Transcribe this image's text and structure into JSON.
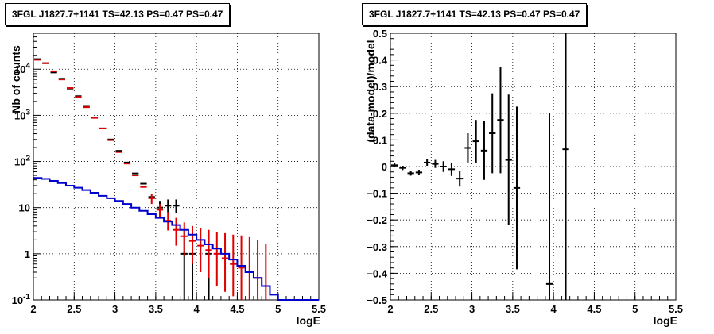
{
  "chart_data": [
    {
      "type": "line",
      "title": "3FGL J1827.7+1141 TS=42.13 PS=0.47 PS=0.47",
      "xlabel": "logE",
      "ylabel": "Nb of counts",
      "xlim": [
        2,
        5.5
      ],
      "ylim": [
        0.1,
        60000
      ],
      "yscale": "log",
      "grid": true,
      "xticks": [
        "2",
        "2.5",
        "3",
        "3.5",
        "4",
        "4.5",
        "5",
        "5.5"
      ],
      "yticks": [
        {
          "v": 0.1,
          "label": "10",
          "sup": "-1"
        },
        {
          "v": 1,
          "label": "1",
          "sup": ""
        },
        {
          "v": 10,
          "label": "10",
          "sup": ""
        },
        {
          "v": 100,
          "label": "10",
          "sup": "2"
        },
        {
          "v": 1000,
          "label": "10",
          "sup": "3"
        },
        {
          "v": 10000,
          "label": "10",
          "sup": "4"
        }
      ],
      "bin_edges": [
        2.0,
        2.1,
        2.2,
        2.3,
        2.4,
        2.5,
        2.6,
        2.7,
        2.8,
        2.9,
        3.0,
        3.1,
        3.2,
        3.3,
        3.4,
        3.5,
        3.6,
        3.7,
        3.8,
        3.9,
        4.0,
        4.1,
        4.2,
        4.3,
        4.4,
        4.5,
        4.6,
        4.7,
        4.8,
        4.9,
        5.0,
        5.1,
        5.2,
        5.3,
        5.4,
        5.5
      ],
      "series": [
        {
          "style": "data-points",
          "color": "#000000",
          "points": [
            {
              "x": 2.05,
              "y": 16500
            },
            {
              "x": 2.15,
              "y": 13500
            },
            {
              "x": 2.25,
              "y": 8500
            },
            {
              "x": 2.35,
              "y": 6200
            },
            {
              "x": 2.45,
              "y": 3800
            },
            {
              "x": 2.55,
              "y": 2600
            },
            {
              "x": 2.65,
              "y": 1600
            },
            {
              "x": 2.75,
              "y": 900
            },
            {
              "x": 2.85,
              "y": 520
            },
            {
              "x": 2.95,
              "y": 300
            },
            {
              "x": 3.05,
              "y": 170
            },
            {
              "x": 3.15,
              "y": 95
            },
            {
              "x": 3.25,
              "y": 55
            },
            {
              "x": 3.35,
              "y": 33
            },
            {
              "x": 3.45,
              "y": 17
            },
            {
              "x": 3.55,
              "y": 10,
              "lo": 7,
              "hi": 14
            },
            {
              "x": 3.65,
              "y": 11,
              "lo": 7.5,
              "hi": 15
            },
            {
              "x": 3.75,
              "y": 11,
              "lo": 7.5,
              "hi": 15
            },
            {
              "x": 3.85,
              "y": 1,
              "lo": 0.1,
              "hi": 3.2
            },
            {
              "x": 3.95,
              "y": 1,
              "lo": 0.1,
              "hi": 3.2
            },
            {
              "x": 4.15,
              "y": 1,
              "lo": 0.1,
              "hi": 3.2
            }
          ]
        },
        {
          "style": "model-points",
          "color": "#e00000",
          "points": [
            {
              "x": 2.05,
              "y": 16000
            },
            {
              "x": 2.15,
              "y": 13500
            },
            {
              "x": 2.25,
              "y": 9000
            },
            {
              "x": 2.35,
              "y": 6000
            },
            {
              "x": 2.45,
              "y": 3900
            },
            {
              "x": 2.55,
              "y": 2500
            },
            {
              "x": 2.65,
              "y": 1500
            },
            {
              "x": 2.75,
              "y": 880
            },
            {
              "x": 2.85,
              "y": 520
            },
            {
              "x": 2.95,
              "y": 290
            },
            {
              "x": 3.05,
              "y": 160
            },
            {
              "x": 3.15,
              "y": 90
            },
            {
              "x": 3.25,
              "y": 50
            },
            {
              "x": 3.35,
              "y": 28
            },
            {
              "x": 3.45,
              "y": 16,
              "lo": 12,
              "hi": 20
            },
            {
              "x": 3.55,
              "y": 9,
              "lo": 6,
              "hi": 12
            },
            {
              "x": 3.65,
              "y": 5.2,
              "lo": 3.2,
              "hi": 8
            },
            {
              "x": 3.75,
              "y": 3.3,
              "lo": 1.5,
              "hi": 6
            },
            {
              "x": 3.85,
              "y": 2.4,
              "lo": 0.9,
              "hi": 4.8
            },
            {
              "x": 3.95,
              "y": 1.9,
              "lo": 0.6,
              "hi": 4
            },
            {
              "x": 4.05,
              "y": 1.5,
              "lo": 0.4,
              "hi": 3.6
            },
            {
              "x": 4.15,
              "y": 1.2,
              "lo": 0.3,
              "hi": 3.3
            },
            {
              "x": 4.25,
              "y": 1.0,
              "lo": 0.2,
              "hi": 3.0
            },
            {
              "x": 4.35,
              "y": 0.8,
              "lo": 0.15,
              "hi": 2.8
            },
            {
              "x": 4.45,
              "y": 0.6,
              "lo": 0.12,
              "hi": 2.6
            },
            {
              "x": 4.55,
              "y": 0.5,
              "lo": 0.1,
              "hi": 2.5
            },
            {
              "x": 4.65,
              "y": 0.4,
              "lo": 0.1,
              "hi": 2.3
            },
            {
              "x": 4.75,
              "y": 0.3,
              "lo": 0.1,
              "hi": 2.0
            },
            {
              "x": 4.85,
              "y": 0.2,
              "lo": 0.1,
              "hi": 1.6
            }
          ]
        },
        {
          "style": "step",
          "color": "#0000cc",
          "values": [
            44,
            42,
            38,
            34,
            30,
            27,
            24,
            21,
            18,
            16,
            14,
            12,
            10,
            8.5,
            7.2,
            6.0,
            5.0,
            4.2,
            3.3,
            2.6,
            2.0,
            1.6,
            1.3,
            1.0,
            0.75,
            0.55,
            0.4,
            0.3,
            0.2,
            0.13,
            0.1,
            0.1,
            0.1,
            0.1,
            0.1
          ]
        }
      ]
    },
    {
      "type": "scatter",
      "title": "3FGL J1827.7+1141 TS=42.13 PS=0.47 PS=0.47",
      "xlabel": "logE",
      "ylabel": "(data-model)/model",
      "xlim": [
        2,
        5.5
      ],
      "ylim": [
        -0.5,
        0.5
      ],
      "grid": true,
      "xticks": [
        "2",
        "2.5",
        "3",
        "3.5",
        "4",
        "4.5",
        "5",
        "5.5"
      ],
      "yticks": [
        "−0.5",
        "−0.4",
        "−0.3",
        "−0.2",
        "−0.1",
        "0",
        "0.1",
        "0.2",
        "0.3",
        "0.4",
        "0.5"
      ],
      "points": [
        {
          "x": 2.05,
          "y": 0.005,
          "err": 0.008
        },
        {
          "x": 2.15,
          "y": -0.005,
          "err": 0.008
        },
        {
          "x": 2.25,
          "y": -0.025,
          "err": 0.009
        },
        {
          "x": 2.35,
          "y": -0.022,
          "err": 0.01
        },
        {
          "x": 2.45,
          "y": 0.015,
          "err": 0.012
        },
        {
          "x": 2.55,
          "y": 0.01,
          "err": 0.015
        },
        {
          "x": 2.65,
          "y": 0.0,
          "err": 0.02
        },
        {
          "x": 2.75,
          "y": -0.01,
          "err": 0.025
        },
        {
          "x": 2.85,
          "y": -0.045,
          "err": 0.03
        },
        {
          "x": 2.95,
          "y": 0.07,
          "err": 0.055
        },
        {
          "x": 3.05,
          "y": 0.095,
          "err": 0.08
        },
        {
          "x": 3.15,
          "y": 0.06,
          "err": 0.11
        },
        {
          "x": 3.25,
          "y": 0.125,
          "err": 0.15
        },
        {
          "x": 3.35,
          "y": 0.175,
          "err": 0.2
        },
        {
          "x": 3.45,
          "y": 0.025,
          "err": 0.245
        },
        {
          "x": 3.55,
          "y": -0.08,
          "err": 0.305
        },
        {
          "x": 3.95,
          "y": -0.44,
          "err": 0.64
        },
        {
          "x": 4.15,
          "y": 0.065,
          "err": 0.7
        }
      ]
    }
  ]
}
